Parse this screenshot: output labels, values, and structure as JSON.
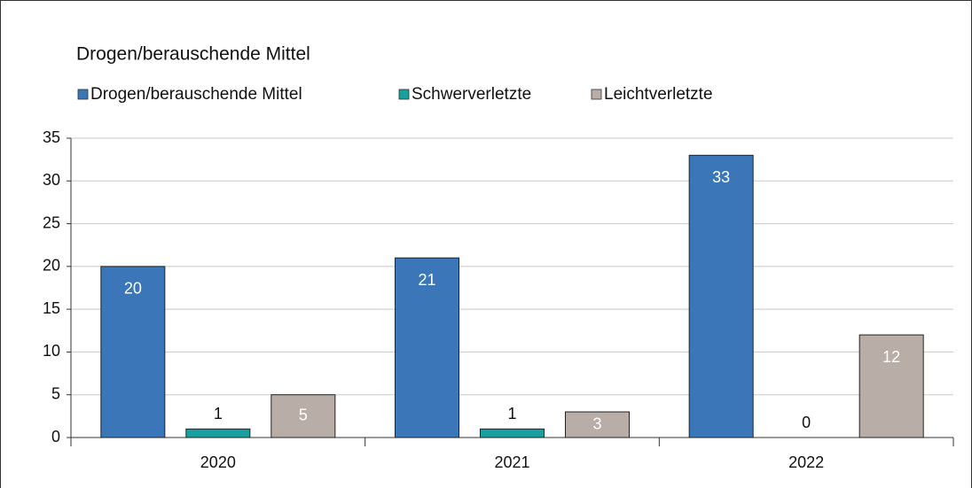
{
  "chart_data": {
    "type": "bar",
    "title": "Drogen/berauschende Mittel",
    "categories": [
      "2020",
      "2021",
      "2022"
    ],
    "series": [
      {
        "name": "Drogen/berauschende Mittel",
        "color": "#3a76b8",
        "values": [
          20,
          21,
          33
        ]
      },
      {
        "name": "Schwerverletzte",
        "color": "#18a0a0",
        "values": [
          1,
          1,
          0
        ]
      },
      {
        "name": "Leichtverletzte",
        "color": "#b9aea7",
        "values": [
          5,
          3,
          12
        ]
      }
    ],
    "ylim": [
      0,
      35
    ],
    "yticks": [
      0,
      5,
      10,
      15,
      20,
      25,
      30,
      35
    ],
    "grid": true
  }
}
